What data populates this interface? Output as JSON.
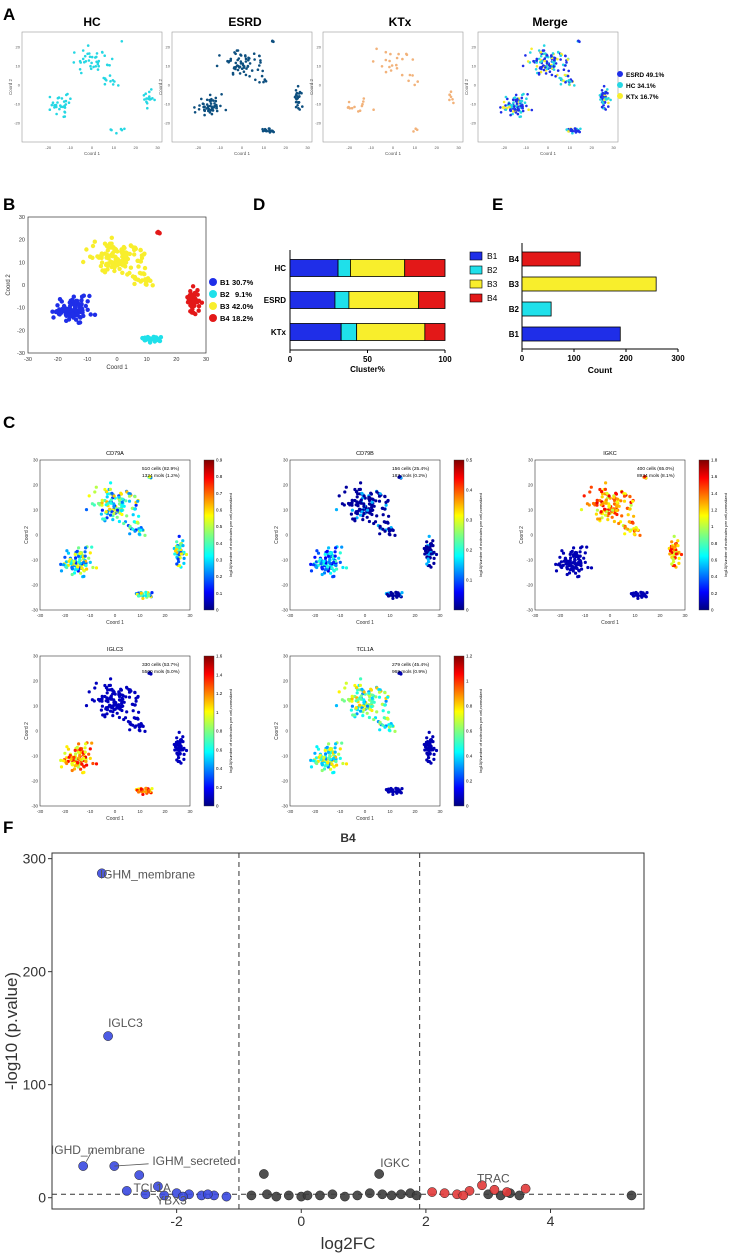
{
  "panels": {
    "A": "A",
    "B": "B",
    "C": "C",
    "D": "D",
    "E": "E",
    "F": "F"
  },
  "colors": {
    "HC": "#25d7e3",
    "ESRD": "#0d4f7f",
    "KTx": "#f2b27a",
    "B1": "#1f2ee8",
    "B2": "#1fe0ea",
    "B3": "#f8ee2c",
    "B4": "#e31818",
    "grey": "#3c3c3c",
    "red": "#e23a3a",
    "blue": "#3a49e0"
  },
  "panelA": {
    "titles": [
      "HC",
      "ESRD",
      "KTx",
      "Merge"
    ],
    "xlabel": "Coord 1",
    "ylabel": "Coord 2",
    "xticks": [
      "-20",
      "-10",
      "0",
      "10",
      "20",
      "30"
    ],
    "yticks": [
      "20",
      "10",
      "0",
      "-10",
      "-20"
    ],
    "legend": [
      "ESRD 49.1%",
      "HC 34.1%",
      "KTx 16.7%"
    ]
  },
  "panelB": {
    "xlabel": "Coord 1",
    "ylabel": "Coord 2",
    "xticks": [
      "-30",
      "-20",
      "-10",
      "0",
      "10",
      "20",
      "30"
    ],
    "yticks": [
      "30",
      "20",
      "10",
      "0",
      "-10",
      "-20",
      "-30"
    ],
    "legend": [
      {
        "label": "B1",
        "pct": "30.7%"
      },
      {
        "label": "B2",
        "pct": "9.1%"
      },
      {
        "label": "B3",
        "pct": "42.0%"
      },
      {
        "label": "B4",
        "pct": "18.2%"
      }
    ]
  },
  "panelC": {
    "xlabel": "Coord 1",
    "ylabel": "Coord 2",
    "cbar_label": "log10(Number of molecules per cell,normalized",
    "genes": [
      {
        "name": "CD79A",
        "cells": "510 cells (82.9%)",
        "mols": "1324 mols (1.2%)",
        "ticks": [
          "0.9",
          "0.8",
          "0.7",
          "0.6",
          "0.5",
          "0.4",
          "0.3",
          "0.2",
          "0.1",
          "0"
        ]
      },
      {
        "name": "CD79B",
        "cells": "156 cells (25.4%)",
        "mols": "187 mols (0.2%)",
        "ticks": [
          "0.5",
          "0.4",
          "0.3",
          "0.2",
          "0.1",
          "0"
        ]
      },
      {
        "name": "IGKC",
        "cells": "400 cells (65.0%)",
        "mols": "8934 mols (8.1%)",
        "ticks": [
          "1.8",
          "1.6",
          "1.4",
          "1.2",
          "1",
          "0.8",
          "0.6",
          "0.4",
          "0.2",
          "0"
        ]
      },
      {
        "name": "IGLC3",
        "cells": "330 cells (53.7%)",
        "mols": "5500 mols (5.0%)",
        "ticks": [
          "1.6",
          "1.4",
          "1.2",
          "1",
          "0.8",
          "0.6",
          "0.4",
          "0.2",
          "0"
        ]
      },
      {
        "name": "TCL1A",
        "cells": "279 cells (45.4%)",
        "mols": "969 mols (0.9%)",
        "ticks": [
          "1.2",
          "1",
          "0.8",
          "0.6",
          "0.4",
          "0.2",
          "0"
        ]
      }
    ]
  },
  "chart_data": [
    {
      "id": "D",
      "type": "bar",
      "orientation": "horizontal-stacked",
      "categories": [
        "HC",
        "ESRD",
        "KTx"
      ],
      "series": [
        {
          "name": "B1",
          "values": [
            31,
            29,
            33
          ]
        },
        {
          "name": "B2",
          "values": [
            8,
            9,
            10
          ]
        },
        {
          "name": "B3",
          "values": [
            35,
            45,
            44
          ]
        },
        {
          "name": "B4",
          "values": [
            26,
            17,
            13
          ]
        }
      ],
      "xlabel": "Cluster%",
      "xlim": [
        0,
        100
      ],
      "xticks": [
        0,
        50,
        100
      ],
      "legend": [
        "B1",
        "B2",
        "B3",
        "B4"
      ]
    },
    {
      "id": "E",
      "type": "bar",
      "orientation": "horizontal",
      "categories": [
        "B4",
        "B3",
        "B2",
        "B1"
      ],
      "values": [
        112,
        258,
        56,
        189
      ],
      "xlabel": "Count",
      "xlim": [
        0,
        300
      ],
      "xticks": [
        0,
        100,
        200,
        300
      ]
    },
    {
      "id": "F",
      "type": "scatter",
      "title": "B4",
      "xlabel": "log2FC",
      "ylabel": "-log10 (p.value)",
      "xlim": [
        -4.0,
        5.5
      ],
      "ylim": [
        -10,
        305
      ],
      "xticks": [
        -2,
        0,
        2,
        4
      ],
      "yticks": [
        0,
        100,
        200,
        300
      ],
      "vlines": [
        -1,
        1.9
      ],
      "hline": 3,
      "labels": [
        {
          "text": "IGHM_membrane",
          "x": -3.2,
          "y": 287
        },
        {
          "text": "IGLC3",
          "x": -3.1,
          "y": 143
        },
        {
          "text": "IGHD_membrane",
          "x": -3.6,
          "y": 28
        },
        {
          "text": "IGHM_secreted",
          "x": -3.0,
          "y": 28
        },
        {
          "text": "TCL1A",
          "x": -2.5,
          "y": 20
        },
        {
          "text": "YBX3",
          "x": -2.2,
          "y": 8
        },
        {
          "text": "IGKC",
          "x": 1.3,
          "y": 21
        },
        {
          "text": "TRAC",
          "x": 2.9,
          "y": 11
        }
      ],
      "points_down": [
        {
          "x": -3.2,
          "y": 287
        },
        {
          "x": -3.1,
          "y": 143
        },
        {
          "x": -3.5,
          "y": 28
        },
        {
          "x": -3.0,
          "y": 28
        },
        {
          "x": -2.6,
          "y": 20
        },
        {
          "x": -2.3,
          "y": 10
        },
        {
          "x": -2.8,
          "y": 6
        },
        {
          "x": -2.5,
          "y": 3
        },
        {
          "x": -2.2,
          "y": 2
        },
        {
          "x": -2.0,
          "y": 4
        },
        {
          "x": -1.8,
          "y": 3
        },
        {
          "x": -1.6,
          "y": 2
        },
        {
          "x": -1.4,
          "y": 2
        },
        {
          "x": -1.2,
          "y": 1
        },
        {
          "x": -1.9,
          "y": 1
        },
        {
          "x": -1.5,
          "y": 3
        }
      ],
      "points_ns": [
        {
          "x": -0.6,
          "y": 21
        },
        {
          "x": -0.55,
          "y": 3
        },
        {
          "x": -0.8,
          "y": 2
        },
        {
          "x": -0.4,
          "y": 1
        },
        {
          "x": -0.2,
          "y": 2
        },
        {
          "x": 0.0,
          "y": 1
        },
        {
          "x": 0.1,
          "y": 2
        },
        {
          "x": 0.3,
          "y": 2
        },
        {
          "x": 0.5,
          "y": 3
        },
        {
          "x": 0.7,
          "y": 1
        },
        {
          "x": 0.9,
          "y": 2
        },
        {
          "x": 1.1,
          "y": 4
        },
        {
          "x": 1.25,
          "y": 21
        },
        {
          "x": 1.3,
          "y": 3
        },
        {
          "x": 1.45,
          "y": 2
        },
        {
          "x": 1.6,
          "y": 3
        },
        {
          "x": 1.75,
          "y": 4
        },
        {
          "x": 1.85,
          "y": 2
        },
        {
          "x": 3.0,
          "y": 3
        },
        {
          "x": 3.2,
          "y": 2
        },
        {
          "x": 3.35,
          "y": 4
        },
        {
          "x": 3.5,
          "y": 2
        },
        {
          "x": 5.3,
          "y": 2
        }
      ],
      "points_up": [
        {
          "x": 2.1,
          "y": 5
        },
        {
          "x": 2.3,
          "y": 4
        },
        {
          "x": 2.5,
          "y": 3
        },
        {
          "x": 2.7,
          "y": 6
        },
        {
          "x": 2.9,
          "y": 11
        },
        {
          "x": 3.1,
          "y": 7
        },
        {
          "x": 3.3,
          "y": 5
        },
        {
          "x": 3.6,
          "y": 8
        },
        {
          "x": 2.6,
          "y": 2
        }
      ]
    }
  ]
}
